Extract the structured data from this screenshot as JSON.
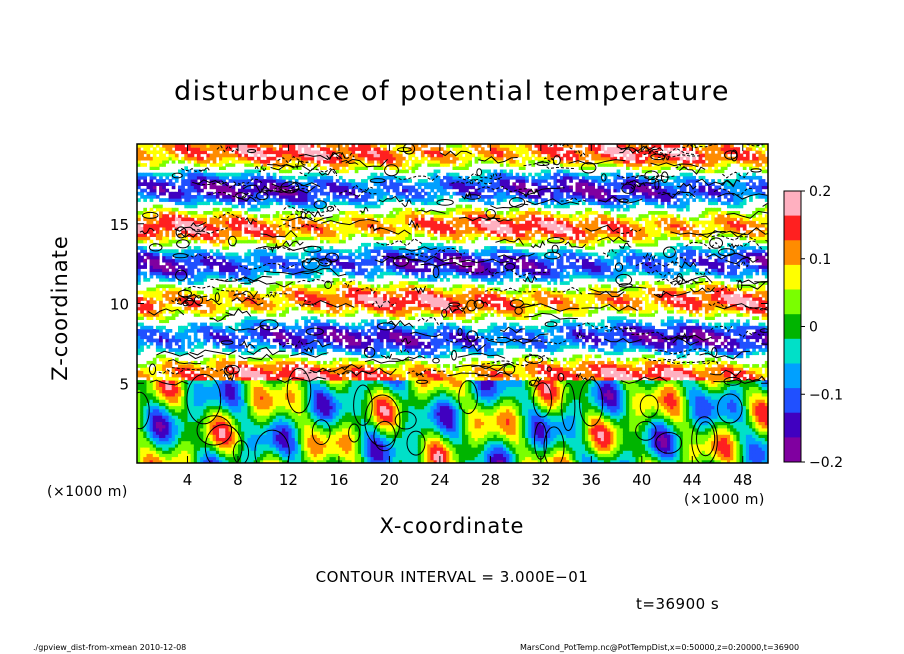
{
  "chart_data": {
    "type": "heatmap",
    "title": "disturbunce of potential temperature",
    "xlabel": "X-coordinate",
    "ylabel": "Z-coordinate",
    "x_unit_label": "(×1000 m)",
    "y_unit_label": "(×1000 m)",
    "xlim": [
      0,
      50
    ],
    "ylim": [
      0,
      20
    ],
    "xticks": [
      "4",
      "8",
      "12",
      "16",
      "20",
      "24",
      "28",
      "32",
      "36",
      "40",
      "44",
      "48"
    ],
    "yticks": [
      "5",
      "10",
      "15"
    ],
    "colorbar": {
      "ticks": [
        "0.2",
        "0.1",
        "0",
        "−0.1",
        "−0.2"
      ],
      "range": [
        -0.2,
        0.2
      ],
      "colors": [
        "#ffb0c0",
        "#ff2020",
        "#ff8c00",
        "#ffff00",
        "#7aff00",
        "#00b400",
        "#00e0c8",
        "#00a0ff",
        "#2050ff",
        "#4000c0",
        "#8000a0"
      ]
    },
    "description_fields": {
      "upper_region_pattern": "horizontal bands",
      "lower_region_pattern": "convective cells"
    }
  },
  "annotations": {
    "contour_interval": "CONTOUR INTERVAL = 3.000E−01",
    "time": "t=36900 s",
    "footer_left": "./gpview_dist-from-xmean  2010-12-08",
    "footer_right": "MarsCond_PotTemp.nc@PotTempDist,x=0:50000,z=0:20000,t=36900"
  }
}
